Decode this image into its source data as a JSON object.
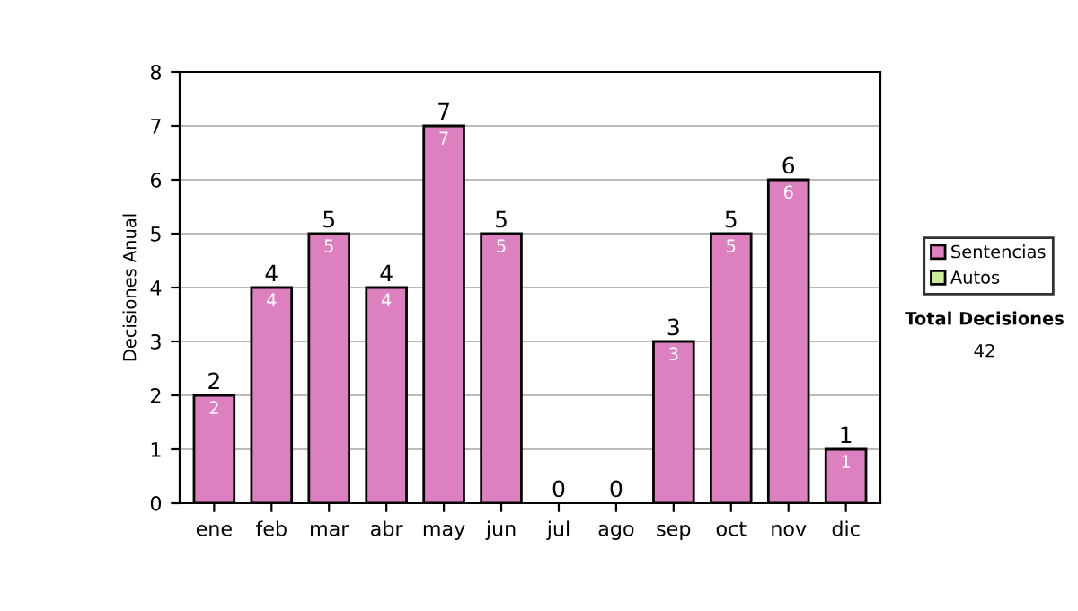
{
  "chart_data": {
    "type": "bar",
    "ylabel": "Decisiones Anual",
    "categories": [
      "ene",
      "feb",
      "mar",
      "abr",
      "may",
      "jun",
      "jul",
      "ago",
      "sep",
      "oct",
      "nov",
      "dic"
    ],
    "stacked": true,
    "series": [
      {
        "name": "Sentencias",
        "color": "#dd80c0",
        "values": [
          2,
          4,
          5,
          4,
          7,
          5,
          0,
          0,
          3,
          5,
          6,
          1
        ],
        "value_labels": [
          "2",
          "4",
          "5",
          "4",
          "7",
          "5",
          null,
          null,
          "3",
          "5",
          "6",
          "1"
        ]
      },
      {
        "name": "Autos",
        "color": "#ccee99",
        "values": [
          0,
          0,
          0,
          0,
          0,
          0,
          0,
          0,
          0,
          0,
          0,
          0
        ]
      }
    ],
    "totals": [
      "2",
      "4",
      "5",
      "4",
      "7",
      "5",
      "0",
      "0",
      "3",
      "5",
      "6",
      "1"
    ],
    "ylim": [
      0,
      8
    ],
    "yticks": [
      0,
      1,
      2,
      3,
      4,
      5,
      6,
      7,
      8
    ],
    "grid": "y",
    "legend": "right",
    "annotations": [
      "Total Decisiones",
      "42"
    ]
  }
}
